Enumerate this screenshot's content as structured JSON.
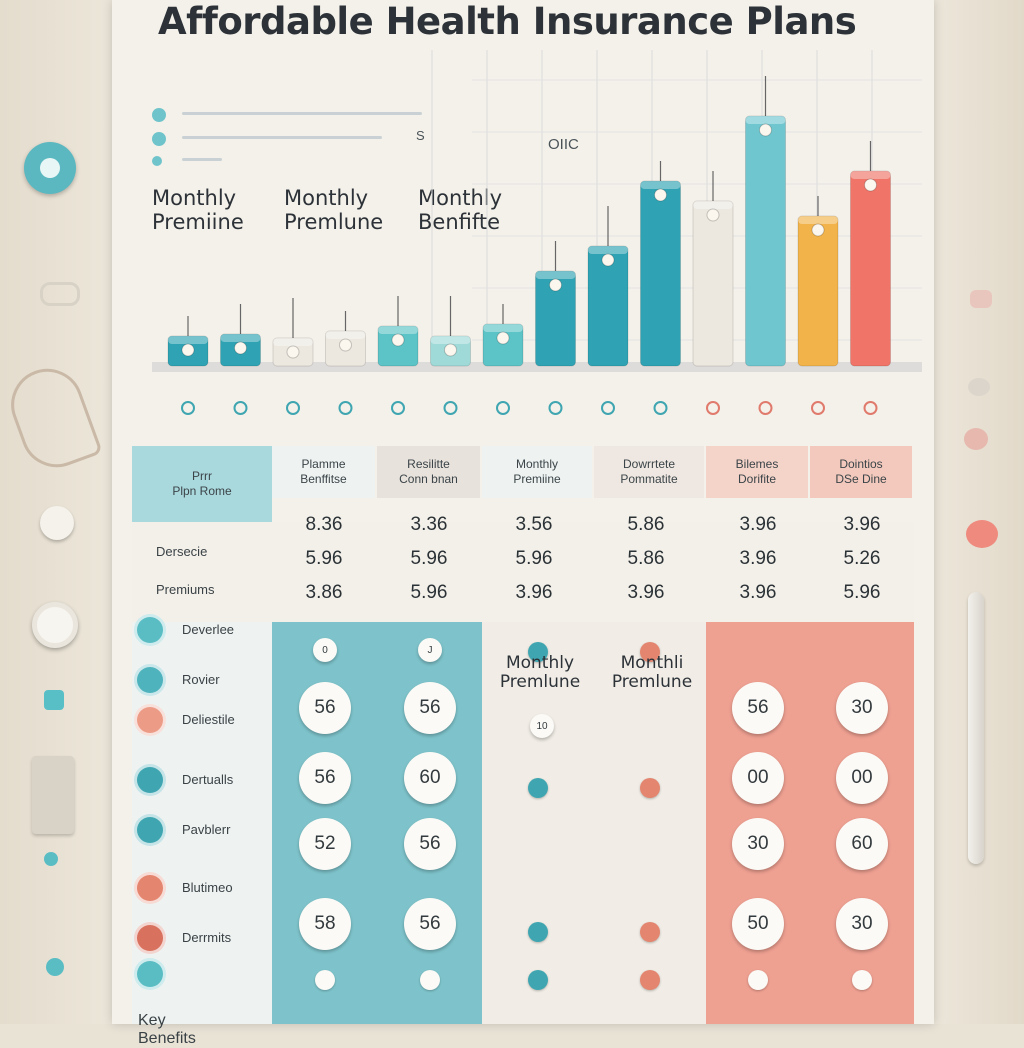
{
  "title": "Affordable Health Insurance Plans",
  "legend": {
    "note": "S",
    "label": "OIIC"
  },
  "column_headers": [
    [
      "Monthly",
      "Premiine"
    ],
    [
      "Monthly",
      "Premlune"
    ],
    [
      "Monthly",
      "Benfifte"
    ]
  ],
  "chart_data": {
    "type": "bar",
    "categories": [
      "",
      "",
      "",
      "",
      "",
      "",
      "",
      "",
      "",
      "",
      "",
      "",
      "",
      ""
    ],
    "series": [
      {
        "values": [
          30,
          32,
          28,
          35,
          40,
          30,
          42,
          95,
          120,
          185,
          165,
          250,
          150,
          195
        ]
      }
    ],
    "colors": [
      "#2fa3b3",
      "#2fa3b3",
      "#ece8e0",
      "#ece8e0",
      "#5cc3c6",
      "#9fdad8",
      "#5cc3c6",
      "#2fa3b3",
      "#2fa3b3",
      "#2fa3b3",
      "#ece8e0",
      "#6fc6cf",
      "#f2b34b",
      "#f07468"
    ],
    "ylim": [
      0,
      290
    ],
    "xlabel": "",
    "ylabel": "",
    "grid": true
  },
  "table": {
    "header_cells": [
      [
        "Plamme",
        "Benffitse"
      ],
      [
        "Resilitte",
        "Conn bnan"
      ],
      [
        "Monthly",
        "Premiine"
      ],
      [
        "Dowrrtete",
        "Pommatite"
      ],
      [
        "Bilemes",
        "Dorifite"
      ],
      [
        "Dointios",
        "DSe Dine"
      ]
    ],
    "header_label": [
      "Prrr",
      "Plpn Rome"
    ],
    "value_rows": [
      [
        "8.36",
        "3.36",
        "3.56",
        "5.86",
        "3.96",
        "3.96"
      ],
      [
        "5.96",
        "5.96",
        "5.96",
        "5.86",
        "3.96",
        "5.26"
      ],
      [
        "3.86",
        "5.96",
        "3.96",
        "3.96",
        "3.96",
        "5.96"
      ]
    ],
    "row_labels": [
      "Dersecie",
      "Premiums",
      "Deverlee",
      "Rovier",
      "Deliestile",
      "Dertualls",
      "Pavblerr",
      "Blutimeo",
      "Derrmits",
      "Key Benefits"
    ],
    "middle_labels": [
      [
        "Monthly",
        "Premlune"
      ],
      [
        "Monthli",
        "Premlune"
      ]
    ],
    "badge_rows": [
      [
        "56",
        "56",
        "",
        "",
        "56",
        "30"
      ],
      [
        "56",
        "60",
        "",
        "",
        "00",
        "00"
      ],
      [
        "52",
        "56",
        "",
        "",
        "30",
        "60"
      ],
      [
        "58",
        "56",
        "",
        "",
        "50",
        "30"
      ]
    ],
    "small_badges": [
      "0",
      "J",
      "",
      "",
      "",
      ""
    ],
    "small_badges_2": [
      "10"
    ]
  }
}
